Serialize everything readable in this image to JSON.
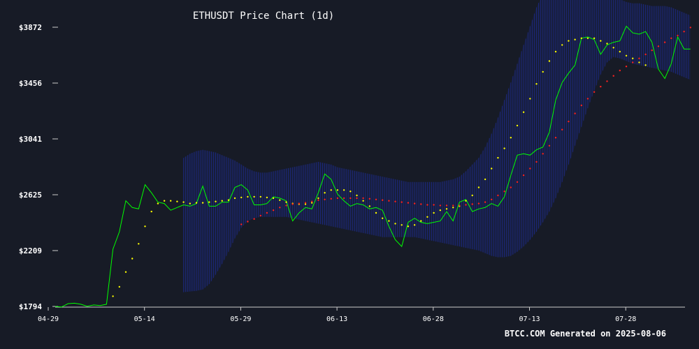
{
  "chart_data": {
    "type": "line",
    "title": "ETHUSDT Price Chart (1d)",
    "footer": "BTCC.COM Generated on 2025-08-06",
    "xlabel": "",
    "ylabel": "",
    "x_ticks": [
      "04-29",
      "05-14",
      "05-29",
      "06-13",
      "06-28",
      "07-13",
      "07-28"
    ],
    "y_ticks": [
      "$1794",
      "$2209",
      "$2625",
      "$3041",
      "$3456",
      "$3872"
    ],
    "ylim": [
      1794,
      3872
    ],
    "x_start": "2025-04-29",
    "grid": false,
    "colors": {
      "background": "#171b26",
      "price": "#00ff00",
      "ma_short": "#ffff00",
      "ma_long": "#ff2020",
      "band": "#1e2a8c"
    },
    "series": [
      {
        "key": "price",
        "style": "line",
        "start_index": 0,
        "values": [
          1794,
          1790,
          1815,
          1818,
          1810,
          1795,
          1805,
          1800,
          1810,
          2220,
          2350,
          2580,
          2530,
          2520,
          2700,
          2640,
          2570,
          2560,
          2510,
          2530,
          2550,
          2540,
          2560,
          2690,
          2540,
          2540,
          2570,
          2570,
          2680,
          2700,
          2660,
          2550,
          2550,
          2560,
          2610,
          2600,
          2580,
          2430,
          2490,
          2530,
          2520,
          2640,
          2780,
          2740,
          2630,
          2580,
          2540,
          2560,
          2550,
          2520,
          2530,
          2510,
          2390,
          2290,
          2240,
          2420,
          2450,
          2420,
          2410,
          2420,
          2430,
          2500,
          2430,
          2570,
          2590,
          2500,
          2520,
          2530,
          2560,
          2540,
          2610,
          2770,
          2920,
          2930,
          2920,
          2960,
          2980,
          3090,
          3330,
          3460,
          3530,
          3590,
          3790,
          3800,
          3780,
          3670,
          3740,
          3760,
          3770,
          3880,
          3830,
          3820,
          3840,
          3760,
          3560,
          3490,
          3600,
          3800,
          3710,
          3710
        ]
      },
      {
        "key": "ma_short",
        "style": "dots",
        "start_index": 9,
        "values": [
          1870,
          1940,
          2050,
          2150,
          2260,
          2390,
          2500,
          2560,
          2580,
          2580,
          2575,
          2570,
          2560,
          2565,
          2565,
          2570,
          2575,
          2580,
          2585,
          2600,
          2605,
          2610,
          2610,
          2610,
          2605,
          2600,
          2585,
          2570,
          2560,
          2555,
          2555,
          2565,
          2600,
          2640,
          2660,
          2660,
          2660,
          2650,
          2620,
          2580,
          2540,
          2490,
          2450,
          2430,
          2410,
          2400,
          2390,
          2400,
          2430,
          2460,
          2490,
          2510,
          2520,
          2530,
          2540,
          2580,
          2620,
          2680,
          2740,
          2820,
          2900,
          2970,
          3050,
          3140,
          3240,
          3340,
          3450,
          3540,
          3620,
          3690,
          3740,
          3770,
          3780,
          3790,
          3790,
          3790,
          3770,
          3750,
          3720,
          3690,
          3660,
          3640,
          3610,
          3590
        ]
      },
      {
        "key": "ma_long",
        "style": "dots",
        "start_index": 29,
        "values": [
          2405,
          2425,
          2445,
          2470,
          2490,
          2510,
          2530,
          2545,
          2555,
          2560,
          2565,
          2575,
          2585,
          2590,
          2595,
          2600,
          2600,
          2600,
          2600,
          2600,
          2595,
          2590,
          2585,
          2580,
          2575,
          2570,
          2565,
          2560,
          2555,
          2550,
          2550,
          2545,
          2545,
          2545,
          2545,
          2550,
          2555,
          2560,
          2570,
          2590,
          2620,
          2650,
          2680,
          2720,
          2770,
          2820,
          2870,
          2930,
          2990,
          3050,
          3110,
          3170,
          3230,
          3290,
          3340,
          3390,
          3430,
          3470,
          3510,
          3550,
          3580,
          3610,
          3640,
          3670,
          3700,
          3730,
          3760,
          3790,
          3810,
          3840,
          3870
        ]
      },
      {
        "key": "band",
        "style": "band",
        "start_index": 20,
        "upper": [
          2900,
          2930,
          2950,
          2960,
          2950,
          2940,
          2920,
          2900,
          2880,
          2850,
          2820,
          2800,
          2790,
          2790,
          2800,
          2810,
          2820,
          2830,
          2840,
          2850,
          2860,
          2870,
          2860,
          2850,
          2830,
          2820,
          2810,
          2800,
          2790,
          2780,
          2770,
          2760,
          2750,
          2740,
          2730,
          2720,
          2720,
          2720,
          2720,
          2720,
          2720,
          2730,
          2740,
          2760,
          2800,
          2850,
          2900,
          2980,
          3080,
          3200,
          3330,
          3460,
          3600,
          3740,
          3880,
          4020,
          4120,
          4210,
          4270,
          4300,
          4310,
          4300,
          4280,
          4260,
          4230,
          4200,
          4160,
          4120,
          4080,
          4060,
          4050,
          4050,
          4040,
          4030,
          4030,
          4030,
          4020,
          4000,
          3980,
          3960
        ],
        "lower": [
          1900,
          1905,
          1910,
          1920,
          1960,
          2030,
          2110,
          2200,
          2300,
          2380,
          2430,
          2450,
          2460,
          2460,
          2460,
          2460,
          2460,
          2450,
          2440,
          2430,
          2420,
          2410,
          2400,
          2390,
          2380,
          2370,
          2360,
          2350,
          2340,
          2330,
          2320,
          2310,
          2310,
          2310,
          2310,
          2310,
          2310,
          2300,
          2290,
          2280,
          2270,
          2260,
          2250,
          2240,
          2230,
          2220,
          2210,
          2190,
          2170,
          2160,
          2160,
          2170,
          2200,
          2240,
          2290,
          2350,
          2420,
          2500,
          2600,
          2720,
          2850,
          2990,
          3130,
          3270,
          3400,
          3520,
          3610,
          3650,
          3640,
          3620,
          3600,
          3590,
          3580,
          3570,
          3560,
          3550,
          3540,
          3520,
          3500,
          3480
        ]
      }
    ]
  }
}
